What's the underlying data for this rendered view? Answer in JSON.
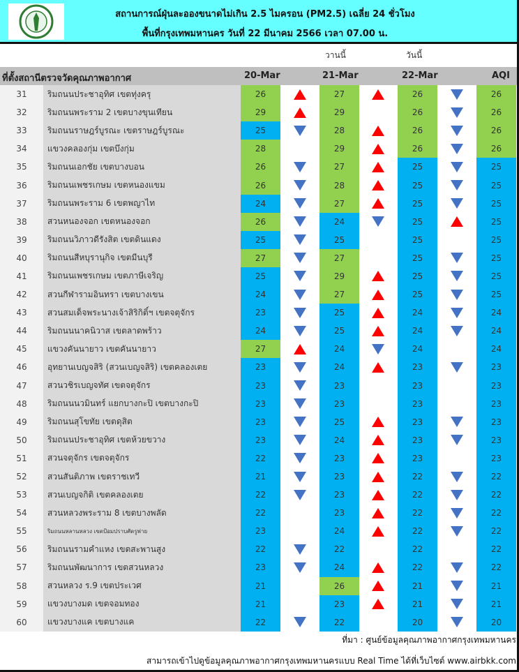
{
  "header": {
    "title_line1": "สถานการณ์ฝุ่นละอองขนาดไม่เกิน 2.5 ไมครอน (PM2.5) เฉลี่ย 24 ชั่วโมง",
    "title_line2": "พื้นที่กรุงเทพมหานคร วันที่ 22 มีนาคม 2566 เวลา 07.00 น.",
    "logo": "ตรากรุงเทพมหานคร"
  },
  "labels": {
    "yesterday": "วานนี้",
    "today": "วันนี้"
  },
  "columns": {
    "station": "ที่ตั้งสถานีตรวจวัดคุณภาพอากาศ",
    "d1": "20-Mar",
    "d2": "21-Mar",
    "d3": "22-Mar",
    "aqi": "AQI"
  },
  "colors": {
    "good": "#92d050",
    "very_good": "#00b0f0",
    "up": "#ff0000",
    "down": "#4472c4",
    "header": "#66ffff"
  },
  "rows": [
    {
      "no": "31",
      "name": "ริมถนนประชาอุทิศ เขตทุ่งครุ",
      "v": [
        26,
        27,
        26
      ],
      "t": [
        "up",
        "up",
        "down"
      ],
      "aqi": 26
    },
    {
      "no": "32",
      "name": "ริมถนนพระราม 2 เขตบางขุนเทียน",
      "v": [
        29,
        29,
        26
      ],
      "t": [
        "up",
        "",
        "down"
      ],
      "aqi": 26
    },
    {
      "no": "33",
      "name": "ริมถนนราษฎร์บูรณะ เขตราษฎร์บูรณะ",
      "v": [
        25,
        28,
        26
      ],
      "t": [
        "down",
        "up",
        "down"
      ],
      "aqi": 26
    },
    {
      "no": "34",
      "name": "แขวงคลองกุ่ม เขตบึงกุ่ม",
      "v": [
        28,
        29,
        26
      ],
      "t": [
        "",
        "up",
        "down"
      ],
      "aqi": 26
    },
    {
      "no": "35",
      "name": "ริมถนนเอกชัย เขตบางบอน",
      "v": [
        26,
        27,
        25
      ],
      "t": [
        "down",
        "up",
        "down"
      ],
      "aqi": 25
    },
    {
      "no": "36",
      "name": "ริมถนนเพชรเกษม เขตหนองแขม",
      "v": [
        26,
        28,
        25
      ],
      "t": [
        "down",
        "up",
        "down"
      ],
      "aqi": 25
    },
    {
      "no": "37",
      "name": "ริมถนนพระราม 6 เขตพญาไท",
      "v": [
        24,
        27,
        25
      ],
      "t": [
        "down",
        "up",
        "down"
      ],
      "aqi": 25
    },
    {
      "no": "38",
      "name": "สวนหนองจอก เขตหนองจอก",
      "v": [
        26,
        24,
        25
      ],
      "t": [
        "down",
        "down",
        "up"
      ],
      "aqi": 25
    },
    {
      "no": "39",
      "name": "ริมถนนวิภาวดีรังสิต เขตดินแดง",
      "v": [
        25,
        25,
        25
      ],
      "t": [
        "down",
        "",
        ""
      ],
      "aqi": 25
    },
    {
      "no": "40",
      "name": "ริมถนนสีหบุรานุกิจ เขตมีนบุรี",
      "v": [
        27,
        27,
        25
      ],
      "t": [
        "down",
        "",
        "down"
      ],
      "aqi": 25
    },
    {
      "no": "41",
      "name": "ริมถนนเพชรเกษม เขตภาษีเจริญ",
      "v": [
        25,
        29,
        25
      ],
      "t": [
        "down",
        "up",
        "down"
      ],
      "aqi": 25
    },
    {
      "no": "42",
      "name": "สวนกีฬารามอินทรา เขตบางเขน",
      "v": [
        24,
        27,
        25
      ],
      "t": [
        "down",
        "up",
        "down"
      ],
      "aqi": 25
    },
    {
      "no": "43",
      "name": "สวนสมเด็จพระนางเจ้าสิริกิติ์ฯ เขตจตุจักร",
      "v": [
        23,
        25,
        24
      ],
      "t": [
        "down",
        "up",
        "down"
      ],
      "aqi": 24
    },
    {
      "no": "44",
      "name": "ริมถนนนาคนิวาส เขตลาดพร้าว",
      "v": [
        24,
        25,
        24
      ],
      "t": [
        "down",
        "up",
        "down"
      ],
      "aqi": 24
    },
    {
      "no": "45",
      "name": "แขวงคันนายาว เขตคันนายาว",
      "v": [
        27,
        24,
        24
      ],
      "t": [
        "up",
        "down",
        ""
      ],
      "aqi": 24
    },
    {
      "no": "46",
      "name": "อุทยานเบญจสิริ (สวนเบญจสิริ) เขตคลองเตย",
      "v": [
        23,
        24,
        23
      ],
      "t": [
        "down",
        "up",
        "down"
      ],
      "aqi": 23
    },
    {
      "no": "47",
      "name": "สวนวชิรเบญจทัศ เขตจตุจักร",
      "v": [
        23,
        23,
        23
      ],
      "t": [
        "down",
        "",
        ""
      ],
      "aqi": 23
    },
    {
      "no": "48",
      "name": "ริมถนนนวมินทร์ แยกบางกะปิ เขตบางกะปิ",
      "v": [
        23,
        23,
        23
      ],
      "t": [
        "down",
        "",
        ""
      ],
      "aqi": 23
    },
    {
      "no": "49",
      "name": "ริมถนนสุโขทัย เขตดุสิต",
      "v": [
        23,
        25,
        23
      ],
      "t": [
        "down",
        "up",
        "down"
      ],
      "aqi": 23
    },
    {
      "no": "50",
      "name": "ริมถนนประชาอุทิศ เขตห้วยขวาง",
      "v": [
        23,
        24,
        23
      ],
      "t": [
        "down",
        "up",
        "down"
      ],
      "aqi": 23
    },
    {
      "no": "51",
      "name": "สวนจตุจักร เขตจตุจักร",
      "v": [
        22,
        23,
        23
      ],
      "t": [
        "down",
        "up",
        ""
      ],
      "aqi": 23
    },
    {
      "no": "52",
      "name": "สวนสันติภาพ เขตราชเทวี",
      "v": [
        21,
        23,
        22
      ],
      "t": [
        "down",
        "up",
        "down"
      ],
      "aqi": 22
    },
    {
      "no": "53",
      "name": "สวนเบญจกิติ  เขตคลองเตย",
      "v": [
        22,
        23,
        22
      ],
      "t": [
        "down",
        "up",
        "down"
      ],
      "aqi": 22
    },
    {
      "no": "54",
      "name": "สวนหลวงพระราม 8 เขตบางพลัด",
      "v": [
        22,
        23,
        22
      ],
      "t": [
        "",
        "up",
        "down"
      ],
      "aqi": 22
    },
    {
      "no": "55",
      "name": "ริมถนนหลานหลวง เขตป้อมปราบศัตรูพ่าย",
      "v": [
        23,
        24,
        22
      ],
      "t": [
        "",
        "up",
        "down"
      ],
      "aqi": 22,
      "small": true
    },
    {
      "no": "56",
      "name": "ริมถนนรามคำแหง เขตสะพานสูง",
      "v": [
        22,
        22,
        22
      ],
      "t": [
        "down",
        "",
        ""
      ],
      "aqi": 22
    },
    {
      "no": "57",
      "name": "ริมถนนพัฒนาการ เขตสวนหลวง",
      "v": [
        23,
        24,
        22
      ],
      "t": [
        "down",
        "up",
        "down"
      ],
      "aqi": 22
    },
    {
      "no": "58",
      "name": "สวนหลวง ร.9 เขตประเวศ",
      "v": [
        21,
        26,
        21
      ],
      "t": [
        "",
        "up",
        "down"
      ],
      "aqi": 21
    },
    {
      "no": "59",
      "name": "แขวงบางมด เขตจอมทอง",
      "v": [
        21,
        23,
        21
      ],
      "t": [
        "",
        "up",
        "down"
      ],
      "aqi": 21
    },
    {
      "no": "60",
      "name": "แขวงบางแค เขตบางแค",
      "v": [
        22,
        22,
        20
      ],
      "t": [
        "down",
        "",
        "down"
      ],
      "aqi": 20
    }
  ],
  "footer": {
    "source": "ที่มา : ศูนย์ข้อมูลคุณภาพอากาศกรุงเทพมหานคร",
    "realtime": "สามารถเข้าไปดูข้อมูลคุณภาพอากาศกรุงเทพมหานครแบบ Real Time ได้ที่เว็บไซต์ www.airbkk.com"
  }
}
